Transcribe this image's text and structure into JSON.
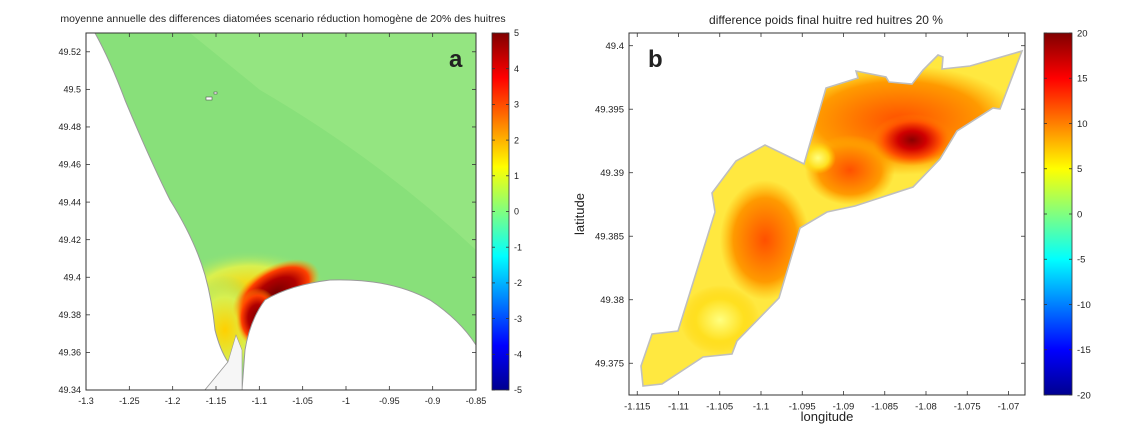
{
  "chart_data": [
    {
      "type": "heatmap",
      "panel_label": "a",
      "title": "moyenne annuelle des differences diatomées scenario réduction homogène de 20% des huitres",
      "xlabel": "",
      "ylabel": "",
      "xlim": [
        -1.3,
        -0.85
      ],
      "ylim": [
        49.34,
        49.53
      ],
      "xticks": [
        -1.3,
        -1.25,
        -1.2,
        -1.15,
        -1.1,
        -1.05,
        -1,
        -0.95,
        -0.9,
        -0.85
      ],
      "yticks": [
        49.34,
        49.36,
        49.38,
        49.4,
        49.42,
        49.44,
        49.46,
        49.48,
        49.5,
        49.52
      ],
      "colorbar": {
        "min": -5,
        "max": 5,
        "ticks": [
          5,
          4,
          3,
          2,
          1,
          0,
          -1,
          -2,
          -3,
          -4,
          -5
        ],
        "colormap": "jet"
      },
      "dominant_value": 0.5,
      "max_region": {
        "x": -1.095,
        "y": 49.39,
        "value": 5
      }
    },
    {
      "type": "heatmap",
      "panel_label": "b",
      "title": "difference poids final huitre red huitres 20 %",
      "xlabel": "longitude",
      "ylabel": "latitude",
      "xlim": [
        -1.116,
        -1.068
      ],
      "ylim": [
        49.3725,
        49.401
      ],
      "xticks": [
        -1.115,
        -1.11,
        -1.105,
        -1.1,
        -1.095,
        -1.09,
        -1.085,
        -1.08,
        -1.075,
        -1.07
      ],
      "yticks": [
        49.375,
        49.38,
        49.385,
        49.39,
        49.395,
        49.4
      ],
      "colorbar": {
        "min": -20,
        "max": 20,
        "ticks": [
          20,
          15,
          10,
          5,
          0,
          -5,
          -10,
          -15,
          -20
        ],
        "colormap": "jet"
      },
      "value_range": [
        5,
        20
      ],
      "max_region": {
        "x": -1.081,
        "y": 49.392,
        "value": 19
      }
    }
  ],
  "colors": {
    "jet": [
      "#00008f",
      "#0000ff",
      "#0080ff",
      "#00ffff",
      "#80ff80",
      "#ffff00",
      "#ff8000",
      "#ff0000",
      "#800000"
    ],
    "sea_green": "#88e07a",
    "coast_outline": "#9a9a9a"
  }
}
